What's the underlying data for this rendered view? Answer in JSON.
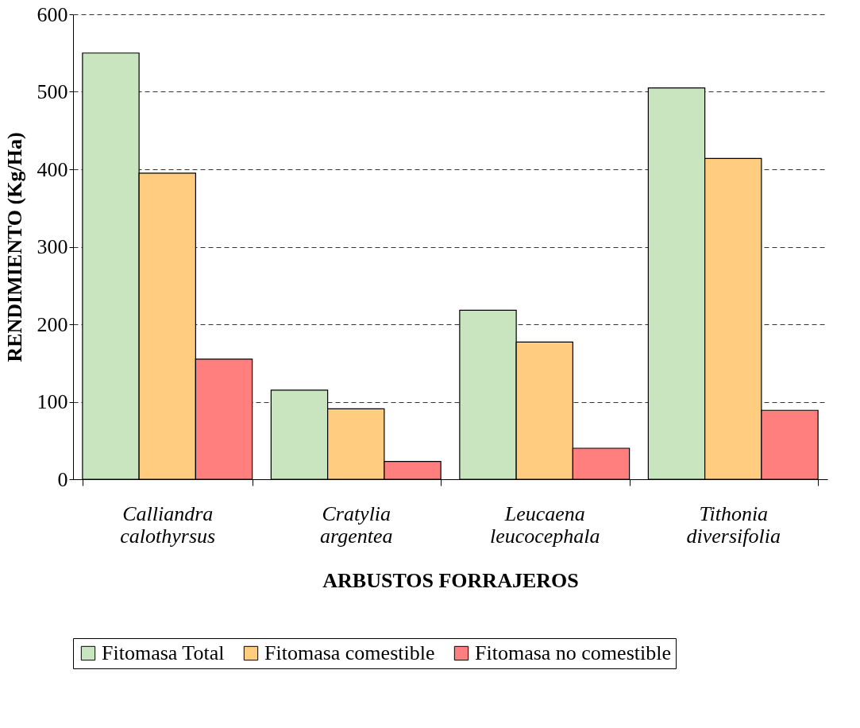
{
  "chart_data": {
    "type": "bar",
    "xlabel": "ARBUSTOS FORRAJEROS",
    "ylabel": "RENDIMIENTO (Kg/Ha)",
    "categories": [
      "Calliandra calothyrsus",
      "Cratylia argentea",
      "Leucaena leucocephala",
      "Tithonia diversifolia"
    ],
    "series": [
      {
        "name": "Fitomasa Total",
        "color": "#c9e5c0",
        "values": [
          550,
          115,
          218,
          505
        ]
      },
      {
        "name": "Fitomasa comestible",
        "color": "#ffcc80",
        "values": [
          395,
          91,
          177,
          414
        ]
      },
      {
        "name": "Fitomasa no comestible",
        "color": "#ff7f7f",
        "values": [
          155,
          23,
          40,
          89
        ]
      }
    ],
    "ylim": [
      0,
      600
    ],
    "yticks": [
      0,
      100,
      200,
      300,
      400,
      500,
      600
    ],
    "grid": "y",
    "legend": "bottom"
  }
}
